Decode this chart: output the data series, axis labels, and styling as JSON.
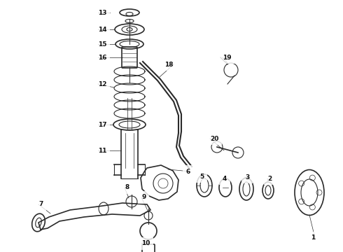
{
  "background_color": "#ffffff",
  "line_color": "#2a2a2a",
  "label_color": "#111111",
  "fig_width": 4.9,
  "fig_height": 3.6,
  "dpi": 100
}
